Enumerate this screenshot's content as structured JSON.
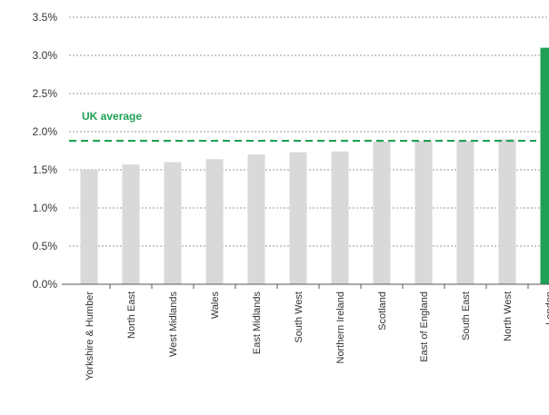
{
  "chart_data": {
    "type": "bar",
    "categories": [
      "Yorkshire & Humber",
      "North East",
      "West Midlands",
      "Wales",
      "East Midlands",
      "South West",
      "Northern Ireland",
      "Scotland",
      "East of England",
      "South East",
      "North West",
      "London"
    ],
    "values": [
      1.5,
      1.57,
      1.6,
      1.64,
      1.7,
      1.73,
      1.74,
      1.87,
      1.88,
      1.88,
      1.9,
      3.1
    ],
    "y_ticks": [
      "0.0%",
      "0.5%",
      "1.0%",
      "1.5%",
      "2.0%",
      "2.5%",
      "3.0%",
      "3.5%"
    ],
    "ylim": [
      0,
      3.5
    ],
    "reference_line": {
      "label": "UK average",
      "value": 1.88
    },
    "grid": true,
    "colors": {
      "bar": "#d9d9d9",
      "highlight": "#1fa055",
      "reference": "#1fa055",
      "grid": "#999999"
    }
  }
}
